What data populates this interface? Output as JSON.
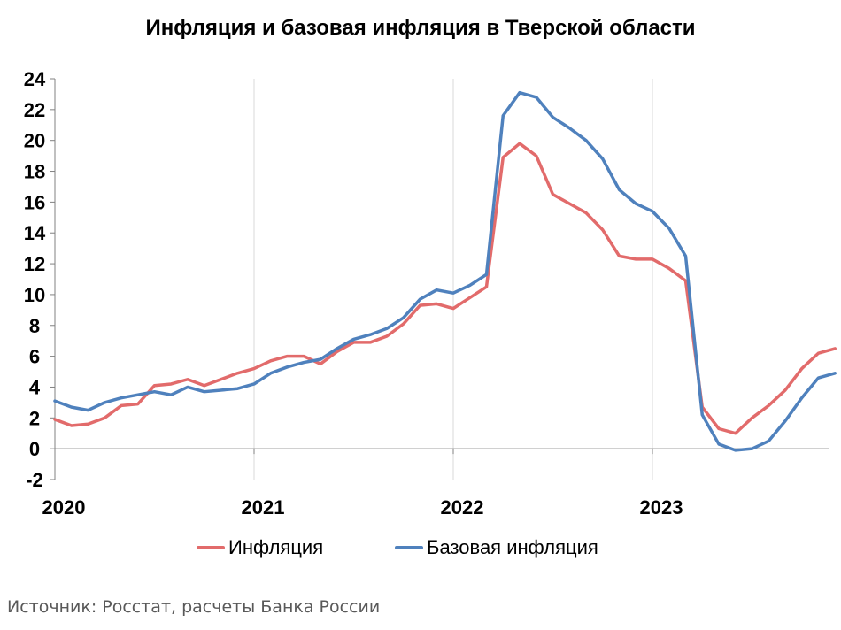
{
  "chart_data": {
    "type": "line",
    "title": "Инфляция и базовая инфляция в Тверской области",
    "xlabel": "",
    "ylabel": "",
    "x_start": "2020-01",
    "x_end": "2023-12",
    "x_ticks": [
      "2020",
      "2021",
      "2022",
      "2023"
    ],
    "y_ticks": [
      "24",
      "22",
      "20",
      "18",
      "16",
      "14",
      "12",
      "10",
      "8",
      "6",
      "4",
      "2",
      "0",
      "-2"
    ],
    "ylim": [
      -2,
      24
    ],
    "grid": "vertical-at-years",
    "legend": "bottom",
    "series": [
      {
        "name": "Инфляция",
        "color": "#E26B6B",
        "values": [
          1.9,
          1.5,
          1.6,
          2.0,
          2.8,
          2.9,
          4.1,
          4.2,
          4.5,
          4.1,
          4.5,
          4.9,
          5.2,
          5.7,
          6.0,
          6.0,
          5.5,
          6.3,
          6.9,
          6.9,
          7.3,
          8.1,
          9.3,
          9.4,
          9.1,
          9.8,
          10.5,
          18.9,
          19.8,
          19.0,
          16.5,
          15.9,
          15.3,
          14.2,
          12.5,
          12.3,
          12.3,
          11.7,
          10.9,
          2.7,
          1.3,
          1.0,
          2.0,
          2.8,
          3.8,
          5.2,
          6.2,
          6.5
        ]
      },
      {
        "name": "Базовая инфляция",
        "color": "#4F81BD",
        "values": [
          3.1,
          2.7,
          2.5,
          3.0,
          3.3,
          3.5,
          3.7,
          3.5,
          4.0,
          3.7,
          3.8,
          3.9,
          4.2,
          4.9,
          5.3,
          5.6,
          5.8,
          6.5,
          7.1,
          7.4,
          7.8,
          8.5,
          9.7,
          10.3,
          10.1,
          10.6,
          11.3,
          21.6,
          23.1,
          22.8,
          21.5,
          20.8,
          20.0,
          18.8,
          16.8,
          15.9,
          15.4,
          14.3,
          12.5,
          2.2,
          0.3,
          -0.1,
          0.0,
          0.5,
          1.8,
          3.3,
          4.6,
          4.9
        ]
      }
    ]
  },
  "footer": {
    "source": "Источник: Росстат, расчеты Банка России"
  }
}
